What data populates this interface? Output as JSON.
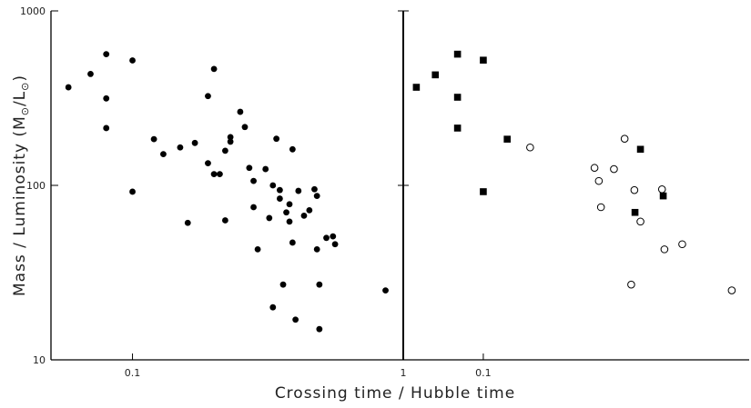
{
  "chart_data": {
    "type": "scatter",
    "xlabel": "Crossing time / Hubble time",
    "ylabel_parts": [
      "Mass / Luminosity  (M",
      "⊙",
      "/L",
      "⊙",
      ")"
    ],
    "xscale": "log",
    "yscale": "log",
    "ylim": [
      10,
      1000
    ],
    "y_ticks": [
      {
        "value": 10,
        "label": "10"
      },
      {
        "value": 100,
        "label": "100"
      },
      {
        "value": 1000,
        "label": "1000"
      }
    ],
    "panels": [
      {
        "name": "left",
        "xlim": [
          0.05,
          1.0
        ],
        "x_ticks": [
          {
            "value": 0.1,
            "label": "0.1"
          },
          {
            "value": 1,
            "label": "1"
          }
        ],
        "series": [
          {
            "marker": "filled-circle",
            "points": [
              [
                0.058,
                365
              ],
              [
                0.07,
                435
              ],
              [
                0.08,
                565
              ],
              [
                0.08,
                315
              ],
              [
                0.08,
                213
              ],
              [
                0.1,
                520
              ],
              [
                0.1,
                92
              ],
              [
                0.12,
                184
              ],
              [
                0.13,
                151
              ],
              [
                0.15,
                165
              ],
              [
                0.16,
                61
              ],
              [
                0.17,
                175
              ],
              [
                0.19,
                325
              ],
              [
                0.19,
                134
              ],
              [
                0.2,
                465
              ],
              [
                0.2,
                116
              ],
              [
                0.21,
                116
              ],
              [
                0.22,
                158
              ],
              [
                0.22,
                63
              ],
              [
                0.23,
                189
              ],
              [
                0.23,
                178
              ],
              [
                0.25,
                264
              ],
              [
                0.26,
                216
              ],
              [
                0.27,
                126
              ],
              [
                0.28,
                75
              ],
              [
                0.28,
                106
              ],
              [
                0.29,
                43
              ],
              [
                0.31,
                124
              ],
              [
                0.32,
                65
              ],
              [
                0.33,
                100
              ],
              [
                0.33,
                20
              ],
              [
                0.34,
                185
              ],
              [
                0.35,
                94
              ],
              [
                0.35,
                84
              ],
              [
                0.36,
                27
              ],
              [
                0.37,
                70
              ],
              [
                0.38,
                78
              ],
              [
                0.38,
                62
              ],
              [
                0.39,
                47
              ],
              [
                0.39,
                161
              ],
              [
                0.4,
                17
              ],
              [
                0.41,
                93
              ],
              [
                0.43,
                67
              ],
              [
                0.45,
                72
              ],
              [
                0.47,
                95
              ],
              [
                0.48,
                87
              ],
              [
                0.48,
                43
              ],
              [
                0.49,
                15
              ],
              [
                0.49,
                27
              ],
              [
                0.52,
                50
              ],
              [
                0.55,
                51
              ],
              [
                0.56,
                46
              ],
              [
                0.86,
                25
              ]
            ]
          }
        ]
      },
      {
        "name": "right",
        "xlim": [
          0.05,
          1.0
        ],
        "x_ticks": [
          {
            "value": 0.1,
            "label": "0.1"
          }
        ],
        "series": [
          {
            "marker": "filled-square",
            "points": [
              [
                0.056,
                365
              ],
              [
                0.066,
                430
              ],
              [
                0.08,
                565
              ],
              [
                0.08,
                320
              ],
              [
                0.08,
                213
              ],
              [
                0.1,
                522
              ],
              [
                0.1,
                92
              ],
              [
                0.123,
                184
              ],
              [
                0.372,
                70
              ],
              [
                0.39,
                161
              ],
              [
                0.475,
                87
              ]
            ]
          },
          {
            "marker": "open-circle",
            "points": [
              [
                0.15,
                165
              ],
              [
                0.262,
                126
              ],
              [
                0.272,
                106
              ],
              [
                0.277,
                75
              ],
              [
                0.31,
                124
              ],
              [
                0.34,
                185
              ],
              [
                0.36,
                27
              ],
              [
                0.37,
                94
              ],
              [
                0.39,
                62
              ],
              [
                0.47,
                95
              ],
              [
                0.48,
                43
              ],
              [
                0.56,
                46
              ],
              [
                0.86,
                25
              ]
            ]
          }
        ]
      }
    ]
  }
}
